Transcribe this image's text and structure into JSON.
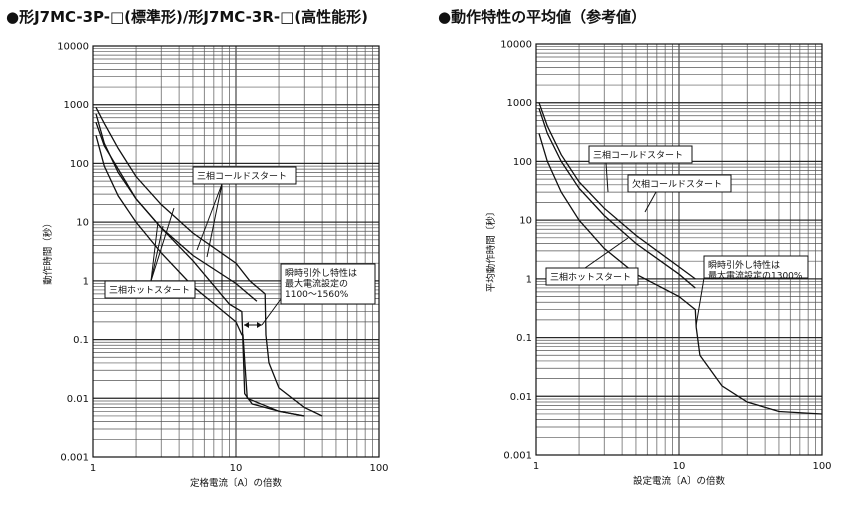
{
  "left_title": "●形J7MC-3P-□(標準形)/形J7MC-3R-□(高性能形)",
  "right_title": "●動作特性の平均値（参考値）",
  "chart_data": [
    {
      "type": "line",
      "title": "●形J7MC-3P-□(標準形)/形J7MC-3R-□(高性能形)",
      "xlabel": "定格電流〔A〕の倍数",
      "ylabel": "動作時間（秒）",
      "xscale": "log",
      "yscale": "log",
      "xlim": [
        1,
        100
      ],
      "ylim": [
        0.001,
        10000
      ],
      "x_ticks": [
        "1",
        "10",
        "100"
      ],
      "y_ticks": [
        "0.001",
        "0.01",
        "0.1",
        "1",
        "10",
        "100",
        "1000",
        "10000"
      ],
      "grid": true,
      "series": [
        {
          "x": [
            1.05,
            1.2,
            1.5,
            2,
            3,
            5,
            9,
            11,
            11.5,
            13,
            20,
            30
          ],
          "y": [
            700,
            220,
            70,
            25,
            8,
            2.2,
            0.4,
            0.3,
            0.012,
            0.008,
            0.006,
            0.005
          ]
        },
        {
          "x": [
            1.05,
            1.2,
            1.5,
            2,
            3,
            5,
            10,
            11,
            11.2,
            12,
            20,
            30
          ],
          "y": [
            300,
            90,
            28,
            10,
            3,
            0.8,
            0.2,
            0.12,
            0.12,
            0.01,
            0.006,
            0.005
          ]
        },
        {
          "x": [
            1.05,
            1.2,
            1.5,
            2,
            3,
            5,
            10,
            12.5,
            16,
            16.2,
            17,
            20,
            30,
            40
          ],
          "y": [
            900,
            480,
            180,
            60,
            20,
            6.5,
            2,
            1,
            0.6,
            0.12,
            0.04,
            0.015,
            0.007,
            0.005
          ]
        },
        {
          "x": [
            1.05,
            1.2,
            1.5,
            2,
            3,
            5,
            10,
            14
          ],
          "y": [
            500,
            200,
            80,
            25,
            8,
            2.7,
            0.9,
            0.45
          ]
        }
      ],
      "annotations": [
        "三相コールドスタート",
        "三相ホットスタート",
        "瞬時引外し特性は",
        "最大電流設定の",
        "1100～1560%"
      ]
    },
    {
      "type": "line",
      "title": "●動作特性の平均値（参考値）",
      "xlabel": "設定電流〔A〕の倍数",
      "ylabel": "平均動作時間〔秒〕",
      "xscale": "log",
      "yscale": "log",
      "xlim": [
        1,
        100
      ],
      "ylim": [
        0.001,
        10000
      ],
      "x_ticks": [
        "1",
        "10",
        "100"
      ],
      "y_ticks": [
        "0.001",
        "0.01",
        "0.1",
        "1",
        "10",
        "100",
        "1000",
        "10000"
      ],
      "grid": true,
      "series": [
        {
          "x": [
            1.05,
            1.2,
            1.5,
            2,
            3,
            5,
            10,
            13,
            13.2,
            14,
            20,
            30,
            50,
            100
          ],
          "y": [
            300,
            100,
            30,
            10,
            3.3,
            1.2,
            0.5,
            0.3,
            0.15,
            0.05,
            0.015,
            0.008,
            0.0055,
            0.005
          ]
        },
        {
          "x": [
            1.05,
            1.2,
            1.5,
            2,
            3,
            5,
            10,
            13
          ],
          "y": [
            800,
            300,
            100,
            35,
            12,
            4,
            1.2,
            0.7
          ]
        },
        {
          "x": [
            1.05,
            1.2,
            1.5,
            2,
            3,
            5,
            10,
            13
          ],
          "y": [
            1000,
            400,
            130,
            45,
            16,
            5.5,
            1.6,
            1
          ]
        }
      ],
      "annotations": [
        "三相コールドスタート",
        "欠相コールドスタート",
        "三相ホットスタート",
        "瞬時引外し特性は",
        "最大電流設定の1300%"
      ]
    }
  ]
}
